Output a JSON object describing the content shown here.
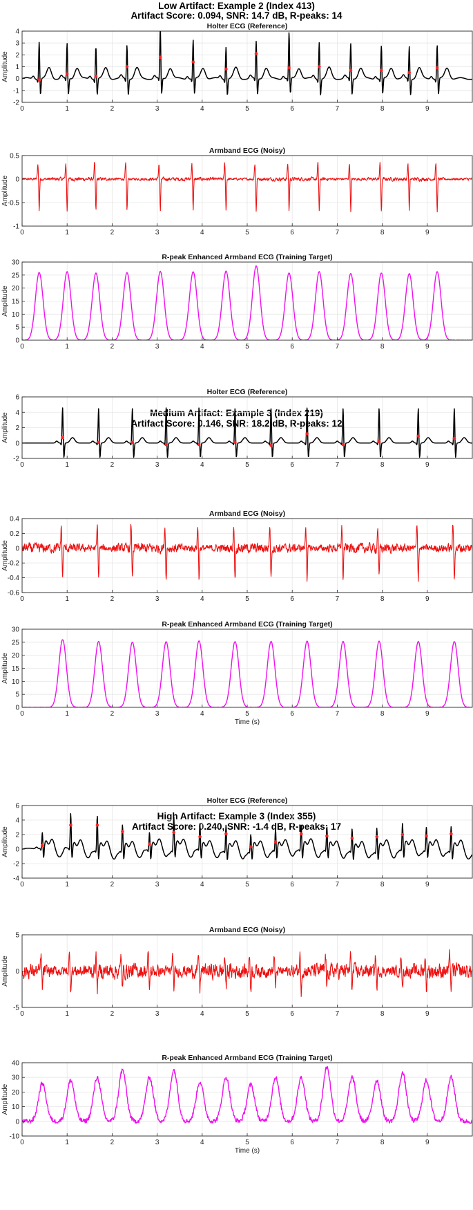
{
  "sections": [
    {
      "title": "Low Artifact: Example 2 (Index 413)",
      "subtitle": "Artifact Score: 0.094, SNR: 14.7 dB, R-peaks: 14"
    },
    {
      "title": "Medium Artifact: Example 3 (Index 219)",
      "subtitle": "Artifact Score: 0.146, SNR: 18.2 dB, R-peaks: 12"
    },
    {
      "title": "High Artifact: Example 3 (Index 355)",
      "subtitle": "Artifact Score: 0.240, SNR: -1.4 dB, R-peaks: 17"
    }
  ],
  "colors": {
    "holter": "#000000",
    "armband": "#ee1111",
    "enhanced": "#ee11ee",
    "peak_marker": "#ff2222",
    "axes": "#262626",
    "grid": "#e6e6e6"
  },
  "chart_data": [
    {
      "type": "line",
      "section": 0,
      "title": "Holter ECG (Reference)",
      "xlabel": "",
      "ylabel": "Amplitude",
      "xlim": [
        0,
        10
      ],
      "ylim": [
        -2,
        4
      ],
      "xticks": [
        0,
        1,
        2,
        3,
        4,
        5,
        6,
        7,
        8,
        9
      ],
      "yticks": [
        -2,
        -1,
        0,
        1,
        2,
        3,
        4
      ],
      "grid": true,
      "signal": "holter",
      "r_peaks_s": [
        0.38,
        1.0,
        1.64,
        2.33,
        3.07,
        3.8,
        4.53,
        5.2,
        5.93,
        6.6,
        7.3,
        7.98,
        8.6,
        9.22
      ],
      "r_peak_amplitudes": [
        3.2,
        3.0,
        2.8,
        2.9,
        4.3,
        3.3,
        2.8,
        3.2,
        3.9,
        3.2,
        3.0,
        2.8,
        2.8,
        2.9
      ],
      "marker_values": [
        -0.1,
        0.4,
        0.2,
        1.0,
        1.8,
        1.4,
        0.8,
        2.1,
        0.9,
        1.0,
        0.7,
        0.7,
        0.5,
        0.9
      ]
    },
    {
      "type": "line",
      "section": 0,
      "title": "Armband ECG (Noisy)",
      "xlabel": "",
      "ylabel": "Amplitude",
      "xlim": [
        0,
        10
      ],
      "ylim": [
        -1,
        0.5
      ],
      "xticks": [
        0,
        1,
        2,
        3,
        4,
        5,
        6,
        7,
        8,
        9
      ],
      "yticks": [
        -1,
        -0.5,
        0,
        0.5
      ],
      "grid": true,
      "signal": "armband",
      "r_peaks_s": [
        0.38,
        1.0,
        1.64,
        2.33,
        3.07,
        3.8,
        4.53,
        5.2,
        5.93,
        6.6,
        7.3,
        7.98,
        8.6,
        9.22
      ],
      "peak_depth": -0.68,
      "peak_height": 0.33,
      "noise_amplitude": 0.06
    },
    {
      "type": "line",
      "section": 0,
      "title": "R-peak Enhanced Armband ECG (Training Target)",
      "xlabel": "",
      "ylabel": "Amplitude",
      "xlim": [
        0,
        10
      ],
      "ylim": [
        0,
        30
      ],
      "xticks": [
        0,
        1,
        2,
        3,
        4,
        5,
        6,
        7,
        8,
        9
      ],
      "yticks": [
        0,
        5,
        10,
        15,
        20,
        25,
        30
      ],
      "grid": true,
      "signal": "enhanced",
      "r_peaks_s": [
        0.38,
        1.0,
        1.64,
        2.33,
        3.07,
        3.8,
        4.53,
        5.2,
        5.93,
        6.6,
        7.3,
        7.98,
        8.6,
        9.22
      ],
      "peak_amplitudes": [
        26,
        26.3,
        25.8,
        26,
        26.4,
        26.3,
        26.5,
        28.5,
        25.8,
        26.3,
        25.6,
        25.8,
        25.6,
        26.3
      ]
    },
    {
      "type": "line",
      "section": 1,
      "title": "Holter ECG (Reference)",
      "xlabel": "",
      "ylabel": "Amplitude",
      "xlim": [
        0,
        10
      ],
      "ylim": [
        -2,
        6
      ],
      "xticks": [
        0,
        1,
        2,
        3,
        4,
        5,
        6,
        7,
        8,
        9
      ],
      "yticks": [
        -2,
        0,
        2,
        4,
        6
      ],
      "grid": true,
      "signal": "holter",
      "r_peaks_s": [
        0.9,
        1.7,
        2.45,
        3.2,
        3.93,
        4.73,
        5.53,
        6.33,
        7.13,
        7.93,
        8.8,
        9.6
      ],
      "r_peak_amplitudes": [
        4.7,
        4.6,
        4.6,
        4.7,
        4.7,
        4.6,
        4.6,
        4.7,
        4.6,
        4.6,
        4.6,
        4.6
      ],
      "marker_values": [
        0.7,
        0.1,
        0.1,
        -0.2,
        -0.2,
        0.1,
        -0.3,
        1.2,
        -0.2,
        0.2,
        0.9,
        0.6
      ]
    },
    {
      "type": "line",
      "section": 1,
      "title": "Armband ECG (Noisy)",
      "xlabel": "",
      "ylabel": "Amplitude",
      "xlim": [
        0,
        10
      ],
      "ylim": [
        -0.6,
        0.4
      ],
      "xticks": [
        0,
        1,
        2,
        3,
        4,
        5,
        6,
        7,
        8,
        9
      ],
      "yticks": [
        -0.6,
        -0.4,
        -0.2,
        0,
        0.2,
        0.4
      ],
      "grid": true,
      "signal": "armband",
      "r_peaks_s": [
        0.9,
        1.7,
        2.45,
        3.2,
        3.93,
        4.73,
        5.53,
        6.33,
        7.13,
        7.93,
        8.8,
        9.6
      ],
      "peak_depth": -0.42,
      "peak_height": 0.3,
      "noise_amplitude": 0.1
    },
    {
      "type": "line",
      "section": 1,
      "title": "R-peak Enhanced Armband ECG (Training Target)",
      "xlabel": "Time (s)",
      "ylabel": "Amplitude",
      "xlim": [
        0,
        10
      ],
      "ylim": [
        0,
        30
      ],
      "xticks": [
        0,
        1,
        2,
        3,
        4,
        5,
        6,
        7,
        8,
        9
      ],
      "yticks": [
        0,
        5,
        10,
        15,
        20,
        25,
        30
      ],
      "grid": true,
      "signal": "enhanced",
      "r_peaks_s": [
        0.9,
        1.7,
        2.45,
        3.2,
        3.93,
        4.73,
        5.53,
        6.33,
        7.13,
        7.93,
        8.8,
        9.6
      ],
      "peak_amplitudes": [
        26,
        25.3,
        25,
        25.2,
        25.5,
        25.3,
        25.3,
        25.4,
        25.3,
        25.4,
        25.3,
        25.3
      ]
    },
    {
      "type": "line",
      "section": 2,
      "title": "Holter ECG (Reference)",
      "xlabel": "",
      "ylabel": "Amplitude",
      "xlim": [
        0,
        10
      ],
      "ylim": [
        -4,
        6
      ],
      "xticks": [
        0,
        1,
        2,
        3,
        4,
        5,
        6,
        7,
        8,
        9
      ],
      "yticks": [
        -4,
        -2,
        0,
        2,
        4,
        6
      ],
      "grid": true,
      "signal": "holter",
      "r_peaks_s": [
        0.45,
        1.08,
        1.67,
        2.23,
        2.83,
        3.37,
        3.95,
        4.53,
        5.08,
        5.63,
        6.2,
        6.77,
        7.33,
        7.88,
        8.45,
        8.98,
        9.53
      ],
      "r_peak_amplitudes": [
        2.2,
        4.9,
        4.8,
        3.5,
        2.4,
        4.5,
        3.5,
        3.6,
        2.2,
        2.8,
        3.3,
        3.1,
        3.0,
        3.2,
        3.5,
        3.0,
        3.3
      ],
      "marker_values": [
        0.5,
        3.3,
        3.3,
        2.4,
        0.7,
        2.3,
        1.7,
        2.1,
        0.3,
        1.0,
        2.1,
        1.8,
        1.5,
        1.7,
        2.0,
        1.8,
        2.1
      ]
    },
    {
      "type": "line",
      "section": 2,
      "title": "Armband ECG (Noisy)",
      "xlabel": "",
      "ylabel": "Amplitude",
      "xlim": [
        0,
        10
      ],
      "ylim": [
        -5,
        5
      ],
      "xticks": [
        0,
        1,
        2,
        3,
        4,
        5,
        6,
        7,
        8,
        9
      ],
      "yticks": [
        -5,
        0,
        5
      ],
      "grid": true,
      "signal": "armband",
      "r_peaks_s": [
        0.45,
        1.08,
        1.67,
        2.23,
        2.83,
        3.37,
        3.95,
        4.53,
        5.08,
        5.63,
        6.2,
        6.77,
        7.33,
        7.88,
        8.45,
        8.98,
        9.53
      ],
      "peak_depth": -2.6,
      "peak_height": 2.2,
      "noise_amplitude": 1.6
    },
    {
      "type": "line",
      "section": 2,
      "title": "R-peak Enhanced Armband ECG (Training Target)",
      "xlabel": "Time (s)",
      "ylabel": "Amplitude",
      "xlim": [
        0,
        10
      ],
      "ylim": [
        -10,
        40
      ],
      "xticks": [
        0,
        1,
        2,
        3,
        4,
        5,
        6,
        7,
        8,
        9
      ],
      "yticks": [
        -10,
        0,
        10,
        20,
        30,
        40
      ],
      "grid": true,
      "signal": "enhanced",
      "noise_amplitude": 1.5,
      "r_peaks_s": [
        0.45,
        1.08,
        1.67,
        2.23,
        2.83,
        3.37,
        3.95,
        4.53,
        5.08,
        5.63,
        6.2,
        6.77,
        7.33,
        7.88,
        8.45,
        8.98,
        9.53
      ],
      "peak_amplitudes": [
        26,
        28,
        30,
        35,
        30,
        35,
        27,
        30,
        25,
        30,
        30,
        37,
        30,
        28,
        33,
        28,
        30
      ]
    }
  ]
}
